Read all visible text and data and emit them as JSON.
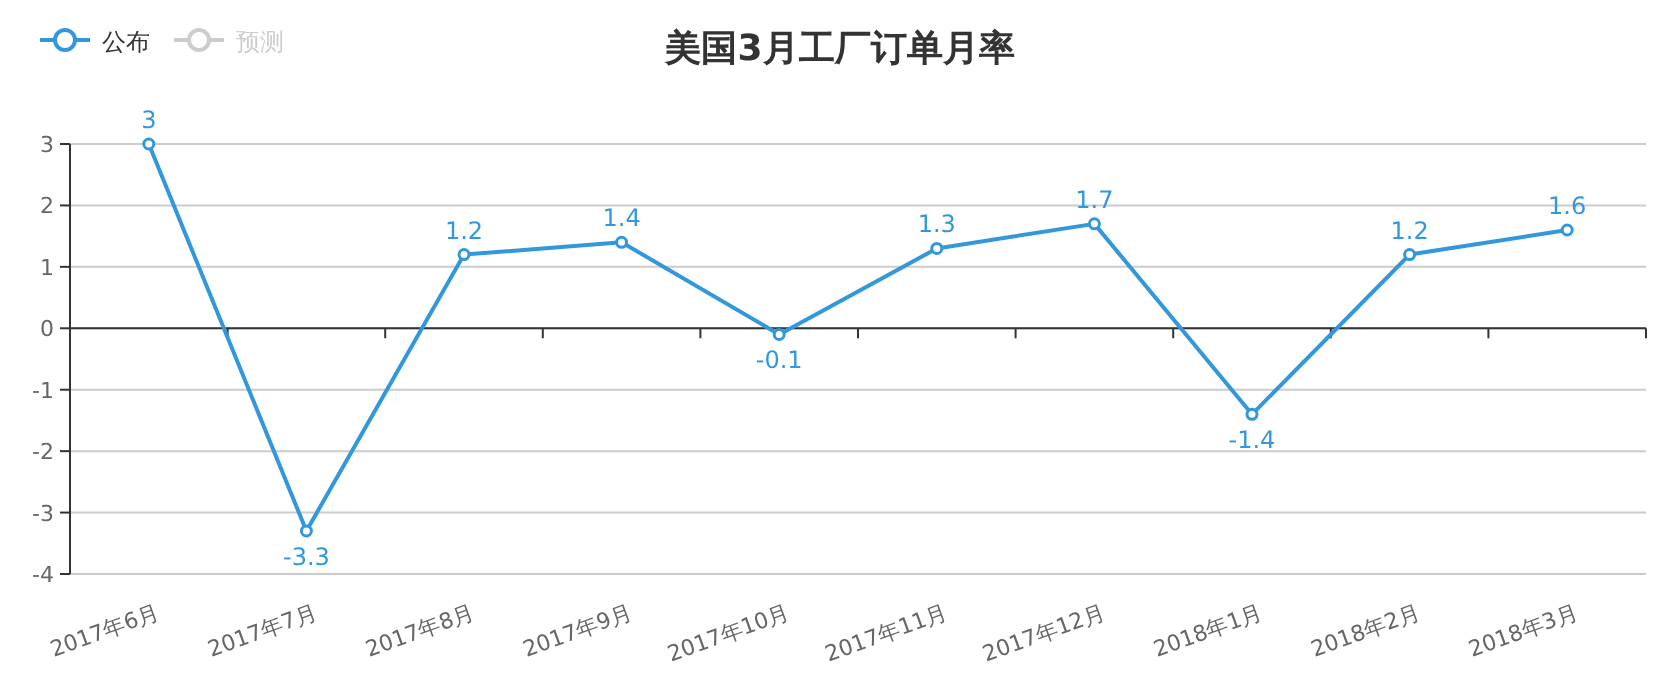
{
  "chart_data": {
    "type": "line",
    "title": "美国3月工厂订单月率",
    "categories": [
      "2017年6月",
      "2017年7月",
      "2017年8月",
      "2017年9月",
      "2017年10月",
      "2017年11月",
      "2017年12月",
      "2018年1月",
      "2018年2月",
      "2018年3月"
    ],
    "series": [
      {
        "name": "公布",
        "color": "#3398db",
        "values": [
          3,
          -3.3,
          1.2,
          1.4,
          -0.1,
          1.3,
          1.7,
          -1.4,
          1.2,
          1.6
        ]
      },
      {
        "name": "预测",
        "color": "#cccccc",
        "values": [
          null,
          null,
          null,
          null,
          null,
          null,
          null,
          null,
          null,
          null
        ]
      }
    ],
    "ylim": [
      -4,
      3
    ],
    "yticks": [
      -4,
      -3,
      -2,
      -1,
      0,
      1,
      2,
      3
    ],
    "grid": "y",
    "legend": "top left",
    "marker": "circle",
    "line_style": "solid",
    "data_labels": true
  }
}
